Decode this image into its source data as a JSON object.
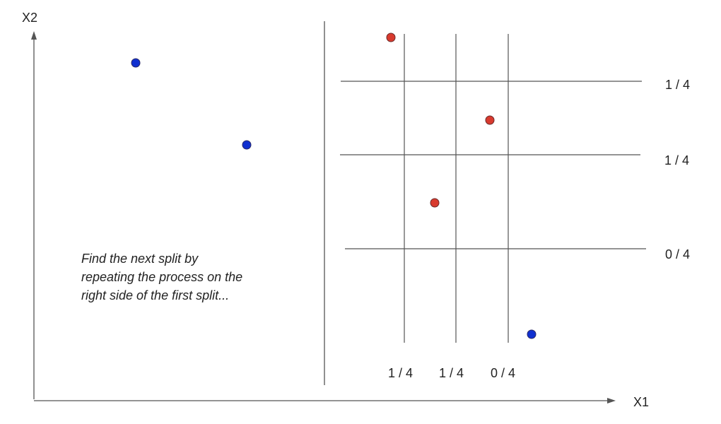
{
  "axes": {
    "x_label": "X1",
    "y_label": "X2"
  },
  "note_lines": [
    "Find the next split by",
    "repeating the process on the",
    "right side of the first split..."
  ],
  "vertical_split_fractions": [
    "1 / 4",
    "1 / 4",
    "0 / 4"
  ],
  "horizontal_split_fractions": [
    "1 / 4",
    "1 / 4",
    "0 / 4"
  ],
  "colors": {
    "blue_point": "#1030d0",
    "red_point": "#d83a2e",
    "line": "#555555"
  }
}
